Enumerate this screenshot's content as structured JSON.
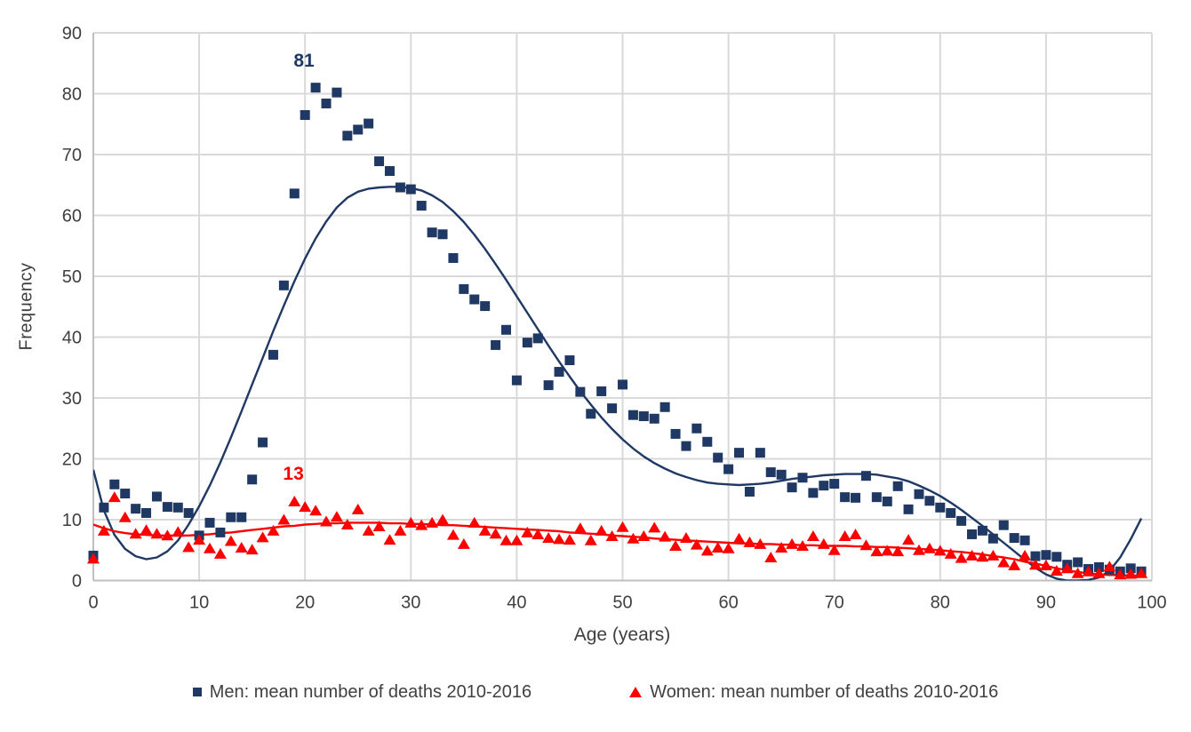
{
  "axes": {
    "y_title": "Frequency",
    "x_title": "Age (years)",
    "y_ticks": [
      0,
      10,
      20,
      30,
      40,
      50,
      60,
      70,
      80,
      90
    ],
    "x_ticks": [
      0,
      10,
      20,
      30,
      40,
      50,
      60,
      70,
      80,
      90,
      100
    ]
  },
  "legend": {
    "men": "Men: mean number of deaths 2010-2016",
    "women": "Women: mean number of deaths 2010-2016"
  },
  "colors": {
    "men": "#1f3864",
    "women": "#fe0000",
    "grid": "#d9d9d9",
    "axis_line": "#bfbfbf",
    "text": "#3f3f3f"
  },
  "chart_data": {
    "type": "scatter",
    "title": "",
    "xlabel": "Age (years)",
    "ylabel": "Frequency",
    "xlim": [
      0,
      100
    ],
    "ylim": [
      0,
      90
    ],
    "grid": true,
    "legend_position": "bottom",
    "x_note": "age in years; array index equals age (0-99)",
    "series": [
      {
        "name": "Men: mean number of deaths 2010-2016",
        "marker": "square",
        "color": "#1f3864",
        "values": [
          4.1,
          12.0,
          15.8,
          14.3,
          11.8,
          11.1,
          13.8,
          12.1,
          12.0,
          11.1,
          7.4,
          9.5,
          7.9,
          10.4,
          10.4,
          16.6,
          22.7,
          37.1,
          48.5,
          63.6,
          76.5,
          81,
          78.4,
          80.2,
          73.1,
          74.1,
          75.1,
          68.9,
          67.3,
          64.6,
          64.3,
          61.6,
          57.2,
          56.9,
          53.0,
          47.9,
          46.2,
          45.1,
          38.7,
          41.2,
          32.9,
          39.1,
          39.8,
          32.1,
          34.3,
          36.2,
          31.0,
          27.4,
          31.1,
          28.3,
          32.2,
          27.2,
          27.0,
          26.6,
          28.5,
          24.1,
          22.1,
          25.0,
          22.8,
          20.2,
          18.3,
          21.0,
          14.6,
          21.0,
          17.8,
          17.4,
          15.3,
          16.9,
          14.4,
          15.6,
          15.9,
          13.7,
          13.6,
          17.2,
          13.7,
          13.0,
          15.5,
          11.7,
          14.2,
          13.1,
          12.0,
          11.1,
          9.8,
          7.6,
          8.2,
          6.9,
          9.1,
          7.0,
          6.6,
          4.0,
          4.2,
          3.9,
          2.6,
          3.0,
          1.9,
          2.2,
          1.8,
          1.5,
          2.0,
          1.5
        ]
      },
      {
        "name": "Women: mean number of deaths 2010-2016",
        "marker": "triangle",
        "color": "#fe0000",
        "values": [
          3.6,
          8.2,
          13.7,
          10.4,
          7.7,
          8.3,
          7.7,
          7.4,
          8.0,
          5.5,
          6.7,
          5.3,
          4.4,
          6.5,
          5.4,
          5.1,
          7.1,
          8.2,
          10.0,
          13.0,
          12.1,
          11.5,
          9.7,
          10.5,
          9.2,
          11.7,
          8.2,
          8.9,
          6.7,
          8.2,
          9.5,
          9.1,
          9.5,
          10.0,
          7.5,
          6.0,
          9.5,
          8.2,
          7.7,
          6.6,
          6.6,
          7.9,
          7.6,
          7.0,
          6.8,
          6.7,
          8.6,
          6.6,
          8.2,
          7.3,
          8.8,
          6.9,
          7.3,
          8.7,
          7.2,
          5.7,
          7.0,
          5.9,
          4.9,
          5.4,
          5.3,
          6.9,
          6.3,
          6.0,
          3.8,
          5.4,
          6.0,
          5.7,
          7.3,
          6.0,
          5.0,
          7.3,
          7.6,
          5.8,
          4.8,
          4.9,
          4.8,
          6.7,
          5.0,
          5.3,
          4.9,
          4.4,
          3.7,
          4.1,
          3.9,
          4.1,
          3.0,
          2.5,
          4.1,
          2.6,
          2.5,
          1.6,
          2.0,
          1.2,
          1.5,
          1.2,
          2.3,
          1.0,
          1.1,
          1.2
        ]
      }
    ],
    "trend_lines": [
      {
        "series": "men",
        "color": "#1f3864",
        "values": [
          18.2,
          11.5,
          7.5,
          5.2,
          4.0,
          3.5,
          3.8,
          4.8,
          6.6,
          9.2,
          12.2,
          15.6,
          19.4,
          23.5,
          27.8,
          32.2,
          36.6,
          41.0,
          45.2,
          49.2,
          52.9,
          56.2,
          59.0,
          61.3,
          62.9,
          63.9,
          64.4,
          64.6,
          64.7,
          64.7,
          64.5,
          64.1,
          63.3,
          62.2,
          60.7,
          58.9,
          56.8,
          54.5,
          52.0,
          49.4,
          46.7,
          44.0,
          41.3,
          38.6,
          36.0,
          33.5,
          31.1,
          28.9,
          26.8,
          24.9,
          23.2,
          21.7,
          20.4,
          19.3,
          18.4,
          17.6,
          17.0,
          16.5,
          16.1,
          15.9,
          15.8,
          15.7,
          15.8,
          15.9,
          16.1,
          16.4,
          16.7,
          16.9,
          17.1,
          17.3,
          17.4,
          17.5,
          17.5,
          17.5,
          17.4,
          17.1,
          16.8,
          16.3,
          15.6,
          14.8,
          13.9,
          12.8,
          11.6,
          10.3,
          9.0,
          7.6,
          6.2,
          4.8,
          3.4,
          2.1,
          1.0,
          0.3,
          0.0,
          0.0,
          0.1,
          0.5,
          1.6,
          3.8,
          6.8,
          10.2
        ]
      },
      {
        "series": "women",
        "color": "#fe0000",
        "values": [
          9.2,
          8.6,
          8.1,
          7.8,
          7.6,
          7.5,
          7.4,
          7.4,
          7.4,
          7.4,
          7.5,
          7.6,
          7.8,
          7.9,
          8.1,
          8.3,
          8.5,
          8.7,
          8.9,
          9.0,
          9.2,
          9.3,
          9.4,
          9.4,
          9.5,
          9.5,
          9.5,
          9.5,
          9.4,
          9.4,
          9.3,
          9.3,
          9.2,
          9.1,
          9.1,
          9.0,
          8.9,
          8.8,
          8.7,
          8.6,
          8.5,
          8.4,
          8.3,
          8.2,
          8.1,
          7.9,
          7.8,
          7.7,
          7.6,
          7.4,
          7.3,
          7.2,
          7.1,
          6.9,
          6.8,
          6.7,
          6.6,
          6.5,
          6.4,
          6.3,
          6.2,
          6.1,
          6.1,
          6.0,
          6.0,
          5.9,
          5.9,
          5.8,
          5.8,
          5.7,
          5.7,
          5.7,
          5.6,
          5.6,
          5.5,
          5.5,
          5.4,
          5.3,
          5.2,
          5.1,
          5.0,
          4.8,
          4.7,
          4.5,
          4.3,
          4.0,
          3.8,
          3.5,
          3.1,
          2.8,
          2.4,
          2.0,
          1.7,
          1.4,
          1.2,
          1.0,
          0.9,
          0.9,
          0.8,
          0.8
        ]
      }
    ],
    "annotations": [
      {
        "text": "81",
        "x": 19.9,
        "y": 85.5,
        "color": "#1f3864"
      },
      {
        "text": "13",
        "x": 18.9,
        "y": 17.6,
        "color": "#fe0000"
      }
    ]
  }
}
